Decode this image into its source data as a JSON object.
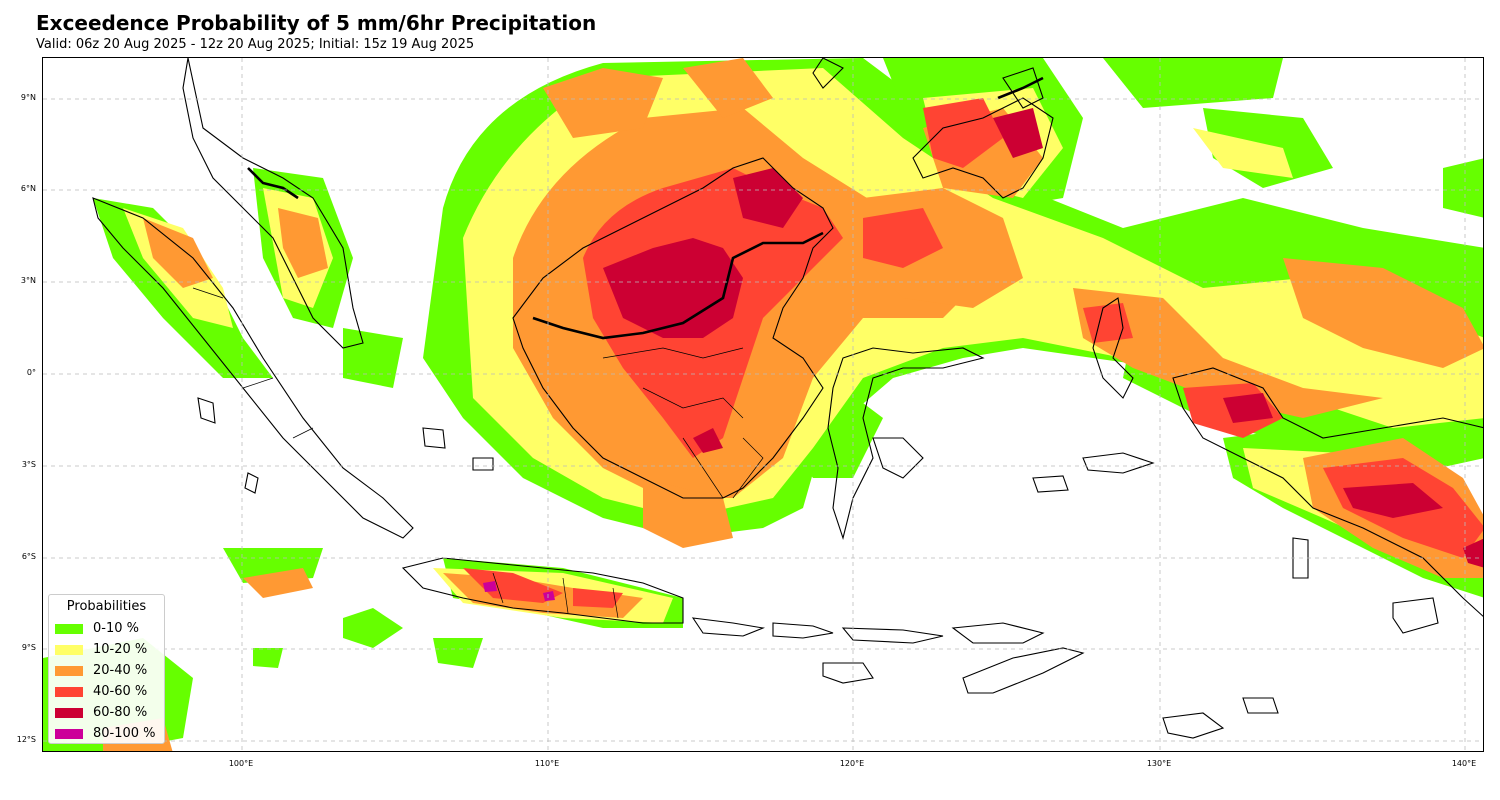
{
  "header": {
    "title": "Exceedence Probability of 5 mm/6hr Precipitation",
    "subtitle": "Valid: 06z 20 Aug 2025 - 12z 20 Aug 2025; Initial: 15z 19 Aug 2025"
  },
  "map": {
    "region": "Indonesia / Maritime Continent",
    "lat_ticks": [
      "9°N",
      "6°N",
      "3°N",
      "0°",
      "3°S",
      "6°S",
      "9°S",
      "12°S"
    ],
    "lon_ticks": [
      "100°E",
      "110°E",
      "120°E",
      "130°E",
      "140°E"
    ],
    "gridlines": true
  },
  "legend": {
    "title": "Probabilities",
    "items": [
      {
        "label": "0-10 %",
        "color": "#66ff00"
      },
      {
        "label": "10-20 %",
        "color": "#ffff66"
      },
      {
        "label": "20-40 %",
        "color": "#ff9933"
      },
      {
        "label": "40-60 %",
        "color": "#ff4433"
      },
      {
        "label": "60-80 %",
        "color": "#cc0033"
      },
      {
        "label": "80-100 %",
        "color": "#cc0099"
      }
    ]
  }
}
